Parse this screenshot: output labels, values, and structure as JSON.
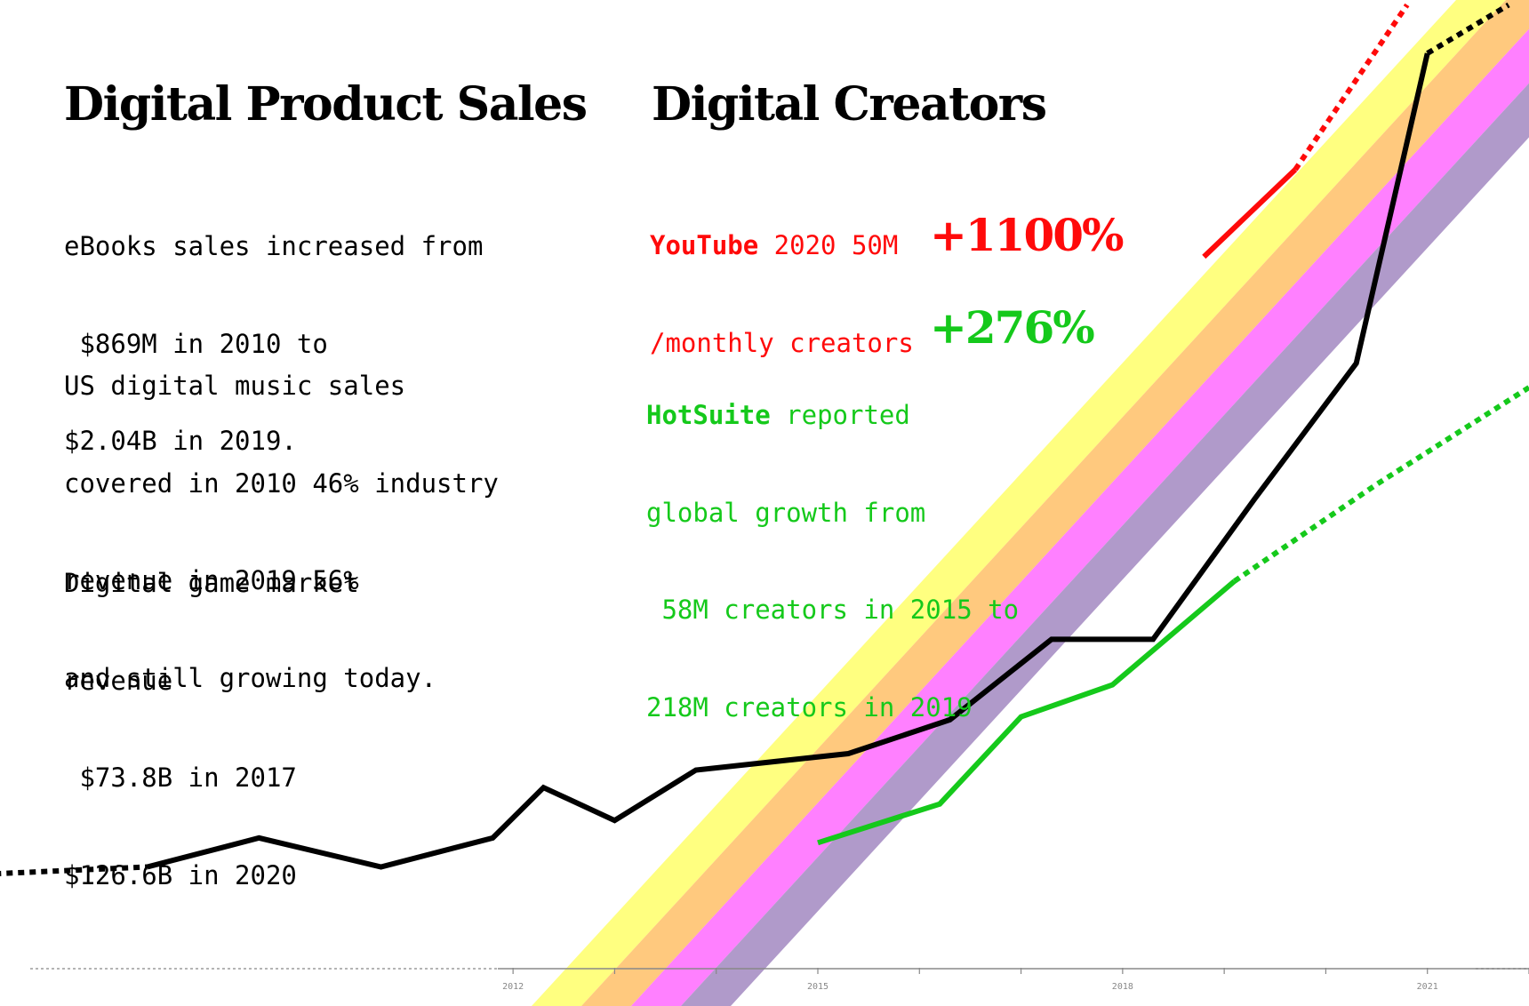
{
  "left_panel": {
    "title": "Digital Product Sales",
    "ebooks": [
      "eBooks sales increased from",
      " $869M in 2010 to",
      "$2.04B in 2019."
    ],
    "music": [
      "US digital music sales",
      "covered in 2010 46% industry",
      "revenue in 2019 56%",
      "and still growing today."
    ],
    "games": [
      "Digital game market",
      "revenue",
      " $73.8B in 2017",
      "$126.6B in 2020"
    ]
  },
  "right_panel": {
    "title": "Digital Creators",
    "youtube": {
      "brand": "YouTube",
      "line1_rest": " 2020 50M",
      "line2": "/monthly creators",
      "growth": "+1100%",
      "color": "#ff0a0a"
    },
    "hotsuite": {
      "brand": "HotSuite",
      "line1_rest": " reported",
      "lines": [
        "global growth from",
        " 58M creators in 2015 to",
        "218M creators in 2019"
      ],
      "growth": "+276%",
      "color": "#15c91b"
    }
  },
  "chart_data": {
    "type": "line",
    "title": "",
    "xlabel": "",
    "ylabel": "",
    "x_tick_labels": [
      "2012",
      "2015",
      "2018",
      "2021"
    ],
    "xlim": [
      2006.95,
      2022.0
    ],
    "ylim": [
      0,
      100
    ],
    "grid": false,
    "band_colors": [
      "#ffff80",
      "#ffc97e",
      "#ff80ff",
      "#b09aca"
    ],
    "axis_color": "#888888",
    "series": [
      {
        "color": "#000000",
        "solid_x": [
          2008.4,
          2009.5,
          2010.7,
          2011.8,
          2012.3,
          2013.0,
          2013.8,
          2015.3,
          2016.3,
          2017.3,
          2018.3,
          2019.3,
          2020.3,
          2021.0
        ],
        "solid_y": [
          10.5,
          13.5,
          10.5,
          13.5,
          18.7,
          15.3,
          20.5,
          22.2,
          25.7,
          34.0,
          34.0,
          48.5,
          62.5,
          94.5
        ],
        "dashed_before_x": [
          2006.9,
          2008.4
        ],
        "dashed_before_y": [
          9.8,
          10.5
        ],
        "dashed_after_x": [
          2021.0,
          2021.8
        ],
        "dashed_after_y": [
          94.5,
          99.5
        ]
      },
      {
        "color": "#ff0a0a",
        "solid_x": [
          2018.8,
          2019.7
        ],
        "solid_y": [
          73.5,
          82.5
        ],
        "dashed_after_x": [
          2019.7,
          2020.8
        ],
        "dashed_after_y": [
          82.5,
          99.5
        ]
      },
      {
        "color": "#15c91b",
        "solid_x": [
          2015.0,
          2016.2,
          2017.0,
          2017.9,
          2019.1
        ],
        "solid_y": [
          13.0,
          17.0,
          26.0,
          29.3,
          40.0
        ],
        "dashed_after_x": [
          2019.1,
          2020.5,
          2022.0
        ],
        "dashed_after_y": [
          40.0,
          50.0,
          60.0
        ]
      }
    ]
  }
}
